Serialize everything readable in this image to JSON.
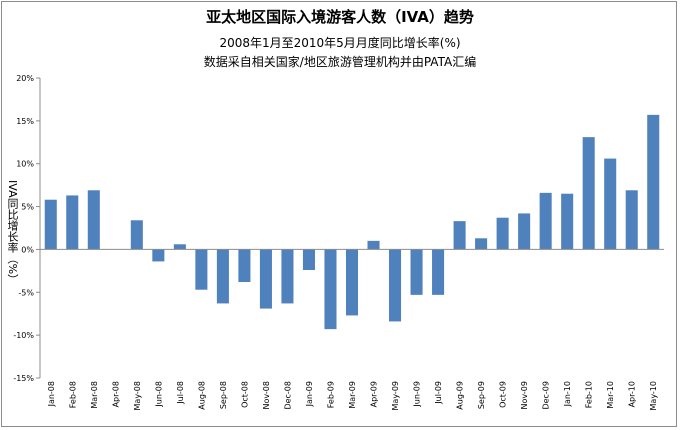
{
  "chart_data": {
    "type": "bar",
    "title": "亚太地区国际入境游客人数（IVA）趋势",
    "subtitle_1": "2008年1月至2010年5月月度同比增长率(%)",
    "subtitle_2": "数据采自相关国家/地区旅游管理机构并由PATA汇编",
    "ylabel": "IVA同比增长率（%）",
    "xlabel": "",
    "ylim": [
      -15,
      20
    ],
    "yticks": [
      -15,
      -10,
      -5,
      0,
      5,
      10,
      15,
      20
    ],
    "ytick_labels": [
      "-15%",
      "-10%",
      "-5%",
      "0%",
      "5%",
      "10%",
      "15%",
      "20%"
    ],
    "grid": false,
    "legend": "none",
    "bar_color": "#4f81bd",
    "categories": [
      "Jan-08",
      "Feb-08",
      "Mar-08",
      "Apr-08",
      "May-08",
      "Jun-08",
      "Jul-08",
      "Aug-08",
      "Sep-08",
      "Oct-08",
      "Nov-08",
      "Dec-08",
      "Jan-09",
      "Feb-09",
      "Mar-09",
      "Apr-09",
      "May-09",
      "Jun-09",
      "Jul-09",
      "Aug-09",
      "Sep-09",
      "Oct-09",
      "Nov-09",
      "Dec-09",
      "Jan-10",
      "Feb-10",
      "Mar-10",
      "Apr-10",
      "May-10"
    ],
    "values": [
      5.8,
      6.3,
      6.9,
      0,
      3.4,
      -1.4,
      0.6,
      -4.7,
      -6.3,
      -3.8,
      -6.9,
      -6.3,
      -2.4,
      -9.3,
      -7.7,
      1.0,
      -8.4,
      -5.3,
      -5.3,
      3.3,
      1.3,
      3.7,
      4.2,
      6.6,
      6.5,
      13.1,
      10.6,
      6.9,
      15.7
    ]
  }
}
